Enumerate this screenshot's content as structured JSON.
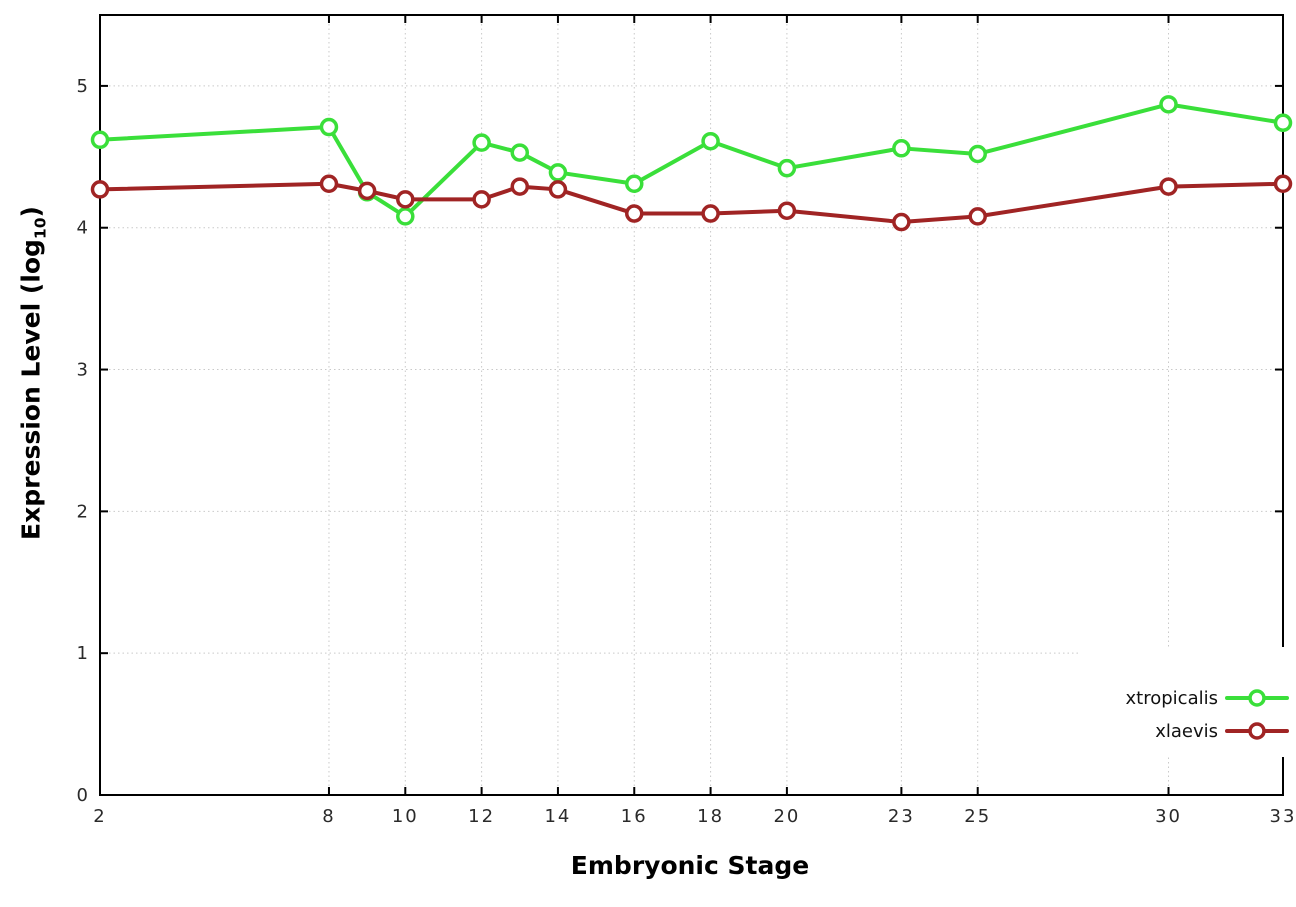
{
  "chart_data": {
    "type": "line",
    "title": "",
    "xlabel": "Embryonic Stage",
    "ylabel": "Expression Level (log10)",
    "ylabel_parts": {
      "prefix": "Expression Level (log",
      "sub": "10",
      "suffix": ")"
    },
    "xlim": [
      2,
      33
    ],
    "ylim": [
      0,
      5.5
    ],
    "xticks": [
      2,
      8,
      10,
      12,
      14,
      16,
      18,
      20,
      23,
      25,
      30,
      33
    ],
    "yticks": [
      0,
      1,
      2,
      3,
      4,
      5
    ],
    "grid": true,
    "legend_position": "inside bottom-right",
    "background": "#ffffff",
    "style": {
      "grid_color": "#c9c9c9",
      "axis_color": "#000000",
      "tick_label_color": "#2a2a2a",
      "line_width": 4,
      "marker_radius": 7.5,
      "marker_stroke": 3.5
    },
    "series": [
      {
        "name": "xtropicalis",
        "color": "#3adf3a",
        "x": [
          2,
          8,
          9,
          10,
          12,
          13,
          14,
          16,
          18,
          20,
          23,
          25,
          30,
          33
        ],
        "y": [
          4.62,
          4.71,
          4.25,
          4.08,
          4.6,
          4.53,
          4.39,
          4.31,
          4.61,
          4.42,
          4.56,
          4.52,
          4.87,
          4.74
        ]
      },
      {
        "name": "xlaevis",
        "color": "#a02424",
        "x": [
          2,
          8,
          9,
          10,
          12,
          13,
          14,
          16,
          18,
          20,
          23,
          25,
          30,
          33
        ],
        "y": [
          4.27,
          4.31,
          4.26,
          4.2,
          4.2,
          4.29,
          4.27,
          4.1,
          4.1,
          4.12,
          4.04,
          4.08,
          4.29,
          4.31
        ]
      }
    ]
  }
}
